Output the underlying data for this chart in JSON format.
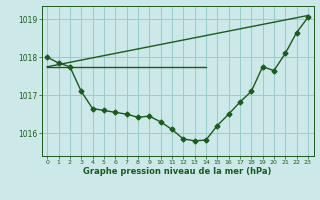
{
  "xlabel": "Graphe pression niveau de la mer (hPa)",
  "bg_color": "#cce8e8",
  "grid_color": "#99cccc",
  "line_color": "#1a5c1a",
  "ylim": [
    1015.4,
    1019.35
  ],
  "yticks": [
    1016,
    1017,
    1018,
    1019
  ],
  "xticks": [
    0,
    1,
    2,
    3,
    4,
    5,
    6,
    7,
    8,
    9,
    10,
    11,
    12,
    13,
    14,
    15,
    16,
    17,
    18,
    19,
    20,
    21,
    22,
    23
  ],
  "series1_x": [
    0,
    1,
    2,
    3,
    4,
    5,
    6,
    7,
    8,
    9,
    10,
    11,
    12,
    13,
    14,
    15,
    16,
    17,
    18,
    19,
    20,
    21,
    22,
    23
  ],
  "series1_y": [
    1018.0,
    1017.85,
    1017.75,
    1017.1,
    1016.65,
    1016.6,
    1016.55,
    1016.5,
    1016.42,
    1016.45,
    1016.3,
    1016.1,
    1015.85,
    1015.8,
    1015.82,
    1016.2,
    1016.5,
    1016.82,
    1017.1,
    1017.75,
    1017.65,
    1018.1,
    1018.65,
    1019.05
  ],
  "series2_x": [
    0,
    14
  ],
  "series2_y": [
    1017.75,
    1017.75
  ],
  "series3_x": [
    0,
    23
  ],
  "series3_y": [
    1017.75,
    1019.1
  ],
  "marker": "D",
  "markersize": 2.5,
  "linewidth": 1.0
}
